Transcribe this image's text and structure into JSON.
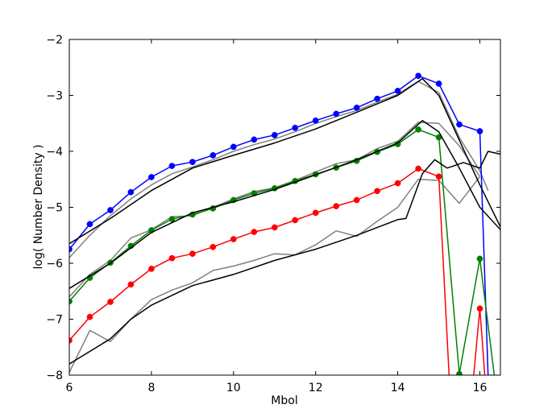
{
  "chart_data": {
    "type": "line",
    "title": "",
    "xlabel": "Mbol",
    "ylabel": "log( Number Density )",
    "xlim": [
      6,
      16.5
    ],
    "ylim": [
      -8,
      -2
    ],
    "xticks": [
      6,
      8,
      10,
      12,
      14,
      16
    ],
    "yticks": [
      -8,
      -7,
      -6,
      -5,
      -4,
      -3,
      -2
    ],
    "xtick_labels": [
      "6",
      "8",
      "10",
      "12",
      "14",
      "16"
    ],
    "ytick_labels": [
      "−8",
      "−7",
      "−6",
      "−5",
      "−4",
      "−3",
      "−2"
    ],
    "grid": false,
    "legend": false,
    "series": [
      {
        "color": "#0000ff",
        "markers": true,
        "points": [
          [
            6.0,
            -5.75
          ],
          [
            6.5,
            -5.3
          ],
          [
            7.0,
            -5.05
          ],
          [
            7.5,
            -4.73
          ],
          [
            8.0,
            -4.46
          ],
          [
            8.5,
            -4.26
          ],
          [
            9.0,
            -4.19
          ],
          [
            9.5,
            -4.07
          ],
          [
            10.0,
            -3.92
          ],
          [
            10.5,
            -3.79
          ],
          [
            11.0,
            -3.71
          ],
          [
            11.5,
            -3.58
          ],
          [
            12.0,
            -3.45
          ],
          [
            12.5,
            -3.33
          ],
          [
            13.0,
            -3.22
          ],
          [
            13.5,
            -3.06
          ],
          [
            14.0,
            -2.92
          ],
          [
            14.5,
            -2.65
          ],
          [
            15.0,
            -2.79
          ],
          [
            15.5,
            -3.52
          ],
          [
            16.0,
            -3.64
          ],
          [
            16.2,
            -8.0
          ]
        ]
      },
      {
        "color": "#008000",
        "markers": true,
        "points": [
          [
            6.0,
            -6.68
          ],
          [
            6.5,
            -6.26
          ],
          [
            7.0,
            -5.99
          ],
          [
            7.5,
            -5.69
          ],
          [
            8.0,
            -5.41
          ],
          [
            8.5,
            -5.21
          ],
          [
            9.0,
            -5.13
          ],
          [
            9.5,
            -5.02
          ],
          [
            10.0,
            -4.87
          ],
          [
            10.5,
            -4.75
          ],
          [
            11.0,
            -4.66
          ],
          [
            11.5,
            -4.53
          ],
          [
            12.0,
            -4.41
          ],
          [
            12.5,
            -4.29
          ],
          [
            13.0,
            -4.17
          ],
          [
            13.5,
            -4.01
          ],
          [
            14.0,
            -3.87
          ],
          [
            14.5,
            -3.61
          ],
          [
            15.0,
            -3.75
          ],
          [
            15.5,
            -7.98
          ],
          [
            16.0,
            -5.92
          ],
          [
            16.35,
            -8.0
          ]
        ]
      },
      {
        "color": "#ff0000",
        "markers": true,
        "points": [
          [
            6.0,
            -7.38
          ],
          [
            6.5,
            -6.96
          ],
          [
            7.0,
            -6.69
          ],
          [
            7.5,
            -6.38
          ],
          [
            8.0,
            -6.1
          ],
          [
            8.5,
            -5.91
          ],
          [
            9.0,
            -5.83
          ],
          [
            9.5,
            -5.71
          ],
          [
            10.0,
            -5.57
          ],
          [
            10.5,
            -5.44
          ],
          [
            11.0,
            -5.36
          ],
          [
            11.5,
            -5.23
          ],
          [
            12.0,
            -5.1
          ],
          [
            12.5,
            -4.98
          ],
          [
            13.0,
            -4.87
          ],
          [
            13.5,
            -4.71
          ],
          [
            14.0,
            -4.57
          ],
          [
            14.5,
            -4.31
          ],
          [
            15.0,
            -4.45
          ],
          [
            15.25,
            -8.0
          ]
        ],
        "extra": [
          [
            15.85,
            -8.0
          ],
          [
            16.0,
            -6.81
          ],
          [
            16.12,
            -8.0
          ]
        ]
      },
      {
        "color": "#000000",
        "markers": false,
        "points": [
          [
            6.0,
            -5.65
          ],
          [
            7.0,
            -5.2
          ],
          [
            8.0,
            -4.7
          ],
          [
            9.0,
            -4.3
          ],
          [
            10.0,
            -4.07
          ],
          [
            11.0,
            -3.85
          ],
          [
            12.0,
            -3.6
          ],
          [
            13.0,
            -3.3
          ],
          [
            14.0,
            -3.0
          ],
          [
            14.6,
            -2.7
          ],
          [
            15.0,
            -3.0
          ],
          [
            15.5,
            -3.8
          ],
          [
            16.0,
            -4.6
          ],
          [
            16.5,
            -5.35
          ]
        ]
      },
      {
        "color": "#000000",
        "markers": false,
        "points": [
          [
            6.0,
            -6.45
          ],
          [
            7.0,
            -6.0
          ],
          [
            8.0,
            -5.45
          ],
          [
            9.0,
            -5.1
          ],
          [
            10.0,
            -4.9
          ],
          [
            11.0,
            -4.68
          ],
          [
            12.0,
            -4.42
          ],
          [
            13.0,
            -4.15
          ],
          [
            14.0,
            -3.85
          ],
          [
            14.6,
            -3.45
          ],
          [
            15.0,
            -3.65
          ],
          [
            15.5,
            -4.3
          ],
          [
            16.0,
            -5.0
          ],
          [
            16.5,
            -5.4
          ]
        ]
      },
      {
        "color": "#000000",
        "markers": false,
        "points": [
          [
            6.0,
            -7.8
          ],
          [
            7.0,
            -7.35
          ],
          [
            7.5,
            -7.0
          ],
          [
            8.0,
            -6.75
          ],
          [
            9.0,
            -6.4
          ],
          [
            10.0,
            -6.2
          ],
          [
            11.0,
            -5.95
          ],
          [
            12.0,
            -5.75
          ],
          [
            13.0,
            -5.5
          ],
          [
            14.0,
            -5.22
          ],
          [
            14.2,
            -5.2
          ],
          [
            14.6,
            -4.4
          ],
          [
            14.9,
            -4.15
          ],
          [
            15.2,
            -4.3
          ],
          [
            15.6,
            -4.2
          ],
          [
            16.0,
            -4.3
          ],
          [
            16.2,
            -4.0
          ],
          [
            16.5,
            -4.05
          ]
        ]
      },
      {
        "color": "#808080",
        "markers": false,
        "points": [
          [
            6.0,
            -5.9
          ],
          [
            6.5,
            -5.5
          ],
          [
            7.0,
            -5.15
          ],
          [
            7.5,
            -4.85
          ],
          [
            8.0,
            -4.6
          ],
          [
            8.5,
            -4.4
          ],
          [
            9.0,
            -4.28
          ],
          [
            9.5,
            -4.15
          ],
          [
            10.0,
            -4.0
          ],
          [
            10.5,
            -3.88
          ],
          [
            11.0,
            -3.78
          ],
          [
            11.5,
            -3.65
          ],
          [
            12.0,
            -3.5
          ],
          [
            12.5,
            -3.38
          ],
          [
            13.0,
            -3.27
          ],
          [
            13.5,
            -3.12
          ],
          [
            14.0,
            -2.98
          ],
          [
            14.5,
            -2.75
          ],
          [
            15.0,
            -2.95
          ],
          [
            15.5,
            -3.75
          ],
          [
            16.0,
            -4.35
          ],
          [
            16.2,
            -4.7
          ]
        ]
      },
      {
        "color": "#808080",
        "markers": false,
        "points": [
          [
            6.0,
            -6.6
          ],
          [
            6.5,
            -6.2
          ],
          [
            7.0,
            -5.95
          ],
          [
            7.5,
            -5.55
          ],
          [
            8.0,
            -5.4
          ],
          [
            8.5,
            -5.17
          ],
          [
            9.0,
            -5.15
          ],
          [
            9.5,
            -5.0
          ],
          [
            10.0,
            -4.85
          ],
          [
            10.5,
            -4.72
          ],
          [
            11.0,
            -4.65
          ],
          [
            11.5,
            -4.52
          ],
          [
            12.0,
            -4.37
          ],
          [
            12.5,
            -4.22
          ],
          [
            13.0,
            -4.15
          ],
          [
            13.5,
            -3.95
          ],
          [
            14.0,
            -3.82
          ],
          [
            14.5,
            -3.48
          ],
          [
            15.0,
            -3.5
          ],
          [
            15.5,
            -3.9
          ],
          [
            16.0,
            -4.45
          ]
        ]
      },
      {
        "color": "#808080",
        "markers": false,
        "points": [
          [
            6.0,
            -7.95
          ],
          [
            6.5,
            -7.2
          ],
          [
            7.0,
            -7.4
          ],
          [
            7.5,
            -7.0
          ],
          [
            8.0,
            -6.65
          ],
          [
            8.5,
            -6.48
          ],
          [
            9.0,
            -6.35
          ],
          [
            9.5,
            -6.13
          ],
          [
            10.0,
            -6.05
          ],
          [
            10.5,
            -5.95
          ],
          [
            11.0,
            -5.83
          ],
          [
            11.5,
            -5.85
          ],
          [
            12.0,
            -5.67
          ],
          [
            12.5,
            -5.42
          ],
          [
            13.0,
            -5.52
          ],
          [
            13.5,
            -5.25
          ],
          [
            14.0,
            -5.0
          ],
          [
            14.5,
            -4.5
          ],
          [
            15.0,
            -4.52
          ],
          [
            15.5,
            -4.93
          ],
          [
            16.0,
            -4.45
          ]
        ]
      }
    ]
  }
}
